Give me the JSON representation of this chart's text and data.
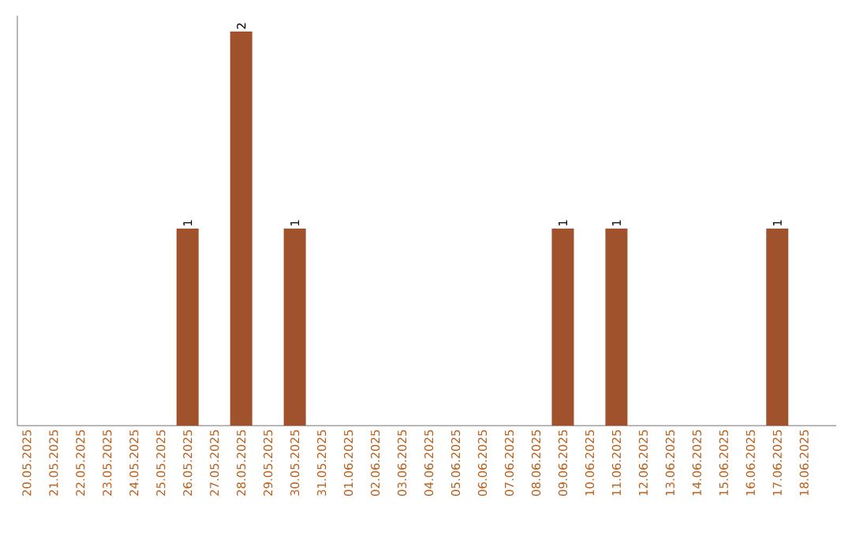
{
  "chart_data": {
    "type": "bar",
    "categories": [
      "20.05.2025",
      "21.05.2025",
      "22.05.2025",
      "23.05.2025",
      "24.05.2025",
      "25.05.2025",
      "26.05.2025",
      "27.05.2025",
      "28.05.2025",
      "29.05.2025",
      "30.05.2025",
      "31.05.2025",
      "01.06.2025",
      "02.06.2025",
      "03.06.2025",
      "04.06.2025",
      "05.06.2025",
      "06.06.2025",
      "07.06.2025",
      "08.06.2025",
      "09.06.2025",
      "10.06.2025",
      "11.06.2025",
      "12.06.2025",
      "13.06.2025",
      "14.06.2025",
      "15.06.2025",
      "16.06.2025",
      "17.06.2025",
      "18.06.2025"
    ],
    "values": [
      0,
      0,
      0,
      0,
      0,
      0,
      1,
      0,
      2,
      0,
      1,
      0,
      0,
      0,
      0,
      0,
      0,
      0,
      0,
      0,
      1,
      0,
      1,
      0,
      0,
      0,
      0,
      0,
      1,
      0
    ],
    "value_labels": [
      null,
      null,
      null,
      null,
      null,
      null,
      "1",
      null,
      "2",
      null,
      "1",
      null,
      null,
      null,
      null,
      null,
      null,
      null,
      null,
      null,
      "1",
      null,
      "1",
      null,
      null,
      null,
      null,
      null,
      "1",
      null
    ],
    "color": "#a0522d",
    "ylim": [
      0,
      2.08
    ],
    "tick_labels": "x"
  }
}
